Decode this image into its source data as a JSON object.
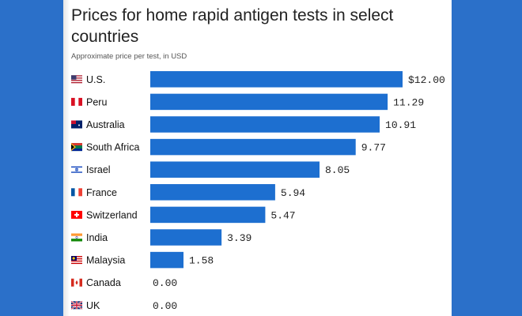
{
  "chart_data": {
    "type": "bar",
    "orientation": "horizontal",
    "title": "Prices for home rapid antigen tests in select countries",
    "subtitle": "Approximate price per test, in USD",
    "categories": [
      "U.S.",
      "Peru",
      "Australia",
      "South Africa",
      "Israel",
      "France",
      "Switzerland",
      "India",
      "Malaysia",
      "Canada",
      "UK"
    ],
    "flags": [
      "us-flag-icon",
      "peru-flag-icon",
      "australia-flag-icon",
      "south-africa-flag-icon",
      "israel-flag-icon",
      "france-flag-icon",
      "switzerland-flag-icon",
      "india-flag-icon",
      "malaysia-flag-icon",
      "canada-flag-icon",
      "uk-flag-icon"
    ],
    "values": [
      12.0,
      11.29,
      10.91,
      9.77,
      8.05,
      5.94,
      5.47,
      3.39,
      1.58,
      0.0,
      0.0
    ],
    "value_labels": [
      "$12.00",
      "11.29",
      "10.91",
      "9.77",
      "8.05",
      "5.94",
      "5.47",
      "3.39",
      "1.58",
      "0.00",
      "0.00"
    ],
    "xlim": [
      0,
      12
    ],
    "grid": false,
    "legend": "none",
    "colors": {
      "bar": "#1d6fd0",
      "background": "#2b70c9"
    }
  }
}
